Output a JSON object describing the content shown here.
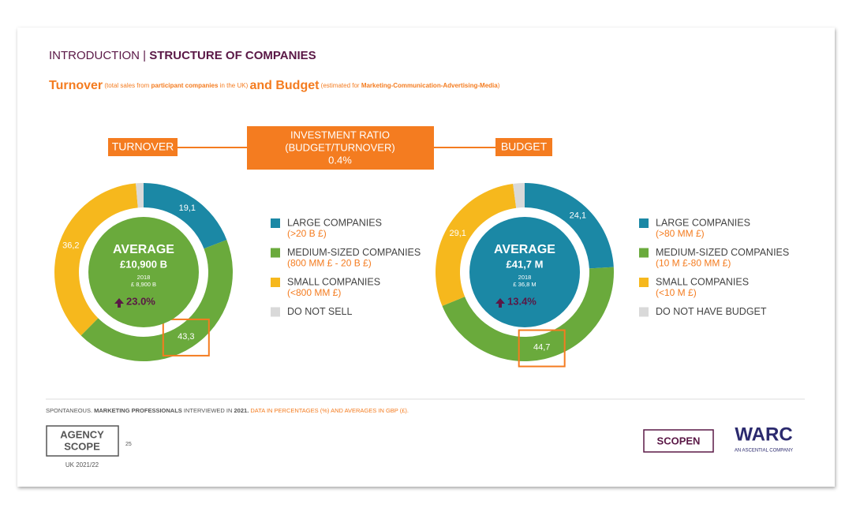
{
  "header": [
    "INTRODUCTION | ",
    "STRUCTURE OF COMPANIES"
  ],
  "subtitle": [
    "Turnover",
    " (total sales from ",
    "participant companies",
    " in the UK) ",
    "and Budget",
    " (estimated for ",
    "Marketing-Communication-Advertising-Media",
    ")"
  ],
  "ratio_box": [
    "INVESTMENT RATIO",
    "(BUDGET/TURNOVER)",
    "0.4%"
  ],
  "chart_data": [
    {
      "type": "pie",
      "title": "TURNOVER",
      "categories": [
        "LARGE COMPANIES",
        "MEDIUM-SIZED COMPANIES",
        "SMALL COMPANIES",
        "DO NOT SELL"
      ],
      "ranges": [
        "(>20 B £)",
        "(800 MM £ - 20 B £)",
        "(<800 MM £)"
      ],
      "values": [
        19.1,
        43.3,
        36.2,
        1.4
      ],
      "value_labels": [
        "19,1",
        "43,3",
        "36,2",
        null
      ],
      "colors": [
        "#1b88a5",
        "#6aaa3c",
        "#f6b81d",
        "#d9d9d9"
      ],
      "center_color": "#6aaa3c",
      "center": {
        "label": "AVERAGE",
        "value": "£10,900 B",
        "prior_year": "2018",
        "prior_value": "£ 8,900 B",
        "change": "23.0%"
      }
    },
    {
      "type": "pie",
      "title": "BUDGET",
      "categories": [
        "LARGE COMPANIES",
        "MEDIUM-SIZED COMPANIES",
        "SMALL COMPANIES",
        "DO NOT HAVE BUDGET"
      ],
      "ranges": [
        "(>80 MM £)",
        "(10 M £-80 MM £)",
        "(<10 M £)"
      ],
      "values": [
        24.1,
        44.7,
        29.1,
        2.1
      ],
      "value_labels": [
        "24,1",
        "44,7",
        "29,1",
        null
      ],
      "colors": [
        "#1b88a5",
        "#6aaa3c",
        "#f6b81d",
        "#d9d9d9"
      ],
      "center_color": "#1b88a5",
      "center": {
        "label": "AVERAGE",
        "value": "£41,7 M",
        "prior_year": "2018",
        "prior_value": "£ 36,8 M",
        "change": "13.4%"
      }
    }
  ],
  "footnote": [
    "SPONTANEOUS. ",
    "MARKETING PROFESSIONALS",
    " INTERVIEWED IN ",
    "2021.",
    " DATA IN PERCENTAGES (%) AND AVERAGES IN GBP (£)."
  ],
  "logo": {
    "agency": "AGENCY",
    "scope": "SCOPE",
    "page": "25",
    "edition": "UK 2021/22",
    "scopen": "SCOPEN",
    "warc": "WARC",
    "warc_sub": "AN ASCENTIAL COMPANY"
  }
}
